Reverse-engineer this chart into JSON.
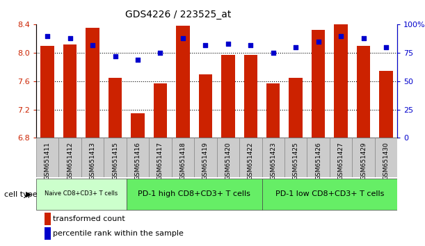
{
  "title": "GDS4226 / 223525_at",
  "samples": [
    "GSM651411",
    "GSM651412",
    "GSM651413",
    "GSM651415",
    "GSM651416",
    "GSM651417",
    "GSM651418",
    "GSM651419",
    "GSM651420",
    "GSM651422",
    "GSM651423",
    "GSM651425",
    "GSM651426",
    "GSM651427",
    "GSM651429",
    "GSM651430"
  ],
  "transformed_count": [
    8.1,
    8.12,
    8.35,
    7.65,
    7.15,
    7.57,
    8.38,
    7.7,
    7.97,
    7.97,
    7.57,
    7.65,
    8.33,
    8.4,
    8.1,
    7.75
  ],
  "percentile_rank": [
    90,
    88,
    82,
    72,
    69,
    75,
    88,
    82,
    83,
    82,
    75,
    80,
    85,
    90,
    88,
    80
  ],
  "ylim_left": [
    6.8,
    8.4
  ],
  "ylim_right": [
    0,
    100
  ],
  "yticks_left": [
    6.8,
    7.2,
    7.6,
    8.0,
    8.4
  ],
  "yticks_right": [
    0,
    25,
    50,
    75,
    100
  ],
  "bar_color": "#cc2200",
  "dot_color": "#0000cc",
  "cell_groups": [
    {
      "label": "Naive CD8+CD3+ T cells",
      "start": 0,
      "end": 3,
      "color": "#ccffcc"
    },
    {
      "label": "PD-1 high CD8+CD3+ T cells",
      "start": 4,
      "end": 9,
      "color": "#66ee66"
    },
    {
      "label": "PD-1 low CD8+CD3+ T cells",
      "start": 10,
      "end": 15,
      "color": "#66ee66"
    }
  ],
  "cell_type_label": "cell type",
  "legend_bar_label": "transformed count",
  "legend_dot_label": "percentile rank within the sample",
  "tick_label_color_left": "#cc2200",
  "tick_label_color_right": "#0000cc",
  "sample_box_color": "#cccccc",
  "naive_group_color": "#ccffcc",
  "other_group_color": "#66ee66"
}
